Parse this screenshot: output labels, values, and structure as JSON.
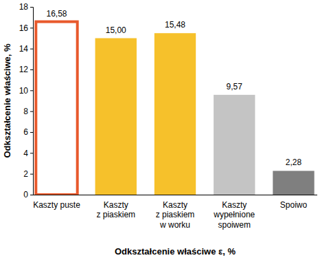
{
  "chart_data": {
    "type": "bar",
    "x_label": "Odkształcenie właściwe ε, %",
    "y_label": "Odkształcenie właściwe, %",
    "categories": [
      "Kaszty puste",
      "Kaszty\nz piaskiem",
      "Kaszty\nz piaskiem\nw worku",
      "Kaszty\nwypełnione\nspoiwem",
      "Spoiwo"
    ],
    "values": [
      16.58,
      15.0,
      15.48,
      9.57,
      2.28
    ],
    "value_labels": [
      "16,58",
      "15,00",
      "15,48",
      "9,57",
      "2,28"
    ],
    "colors": [
      "#ffffff",
      "#f6c12b",
      "#f6c12b",
      "#c4c4c4",
      "#7f7f7f"
    ],
    "ylim": [
      0,
      18
    ],
    "yticks": [
      0,
      2,
      4,
      6,
      8,
      10,
      12,
      14,
      16,
      18
    ],
    "grid": false,
    "data_labels": true
  }
}
